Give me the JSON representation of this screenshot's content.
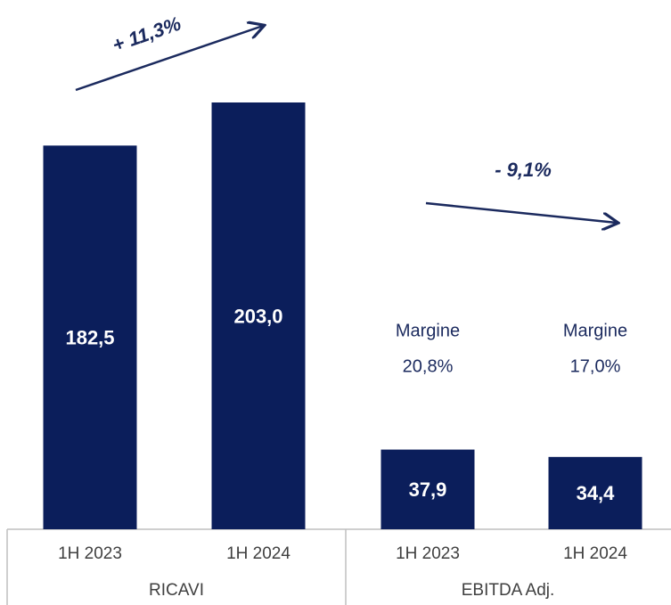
{
  "chart_data": {
    "type": "bar",
    "categories": [
      "1H 2023",
      "1H 2024",
      "1H 2023",
      "1H 2024"
    ],
    "groups": [
      "RICAVI",
      "EBITDA Adj."
    ],
    "values": [
      182.5,
      203.0,
      37.9,
      34.4
    ],
    "value_labels": [
      "182,5",
      "203,0",
      "37,9",
      "34,4"
    ],
    "color": "#0b1e5b",
    "annotations": [
      "+ 11,3%",
      "- 9,1%"
    ],
    "margins": [
      [
        "Margine",
        "20,8%"
      ],
      [
        "Margine",
        "17,0%"
      ]
    ]
  }
}
